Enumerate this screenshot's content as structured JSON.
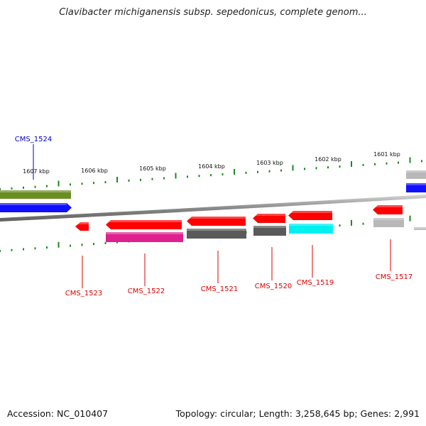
{
  "title": "Clavibacter michiganensis subsp. sepedonicus, complete genom...",
  "footer": {
    "accession": "Accession: NC_010407",
    "topology": "Topology: circular; Length: 3,258,645 bp; Genes: 2,991"
  },
  "colors": {
    "backbone": "#8a8a8a",
    "tick": "#1a8a1a",
    "tick_label": "#111111",
    "label_red": "#dd0000",
    "label_blue": "#0000cc",
    "olive": "#6b8e23",
    "blue": "#1010ff",
    "red": "#ff0000",
    "magenta": "#e0208f",
    "darkgray": "#5a5a5a",
    "cyan": "#00f0f0",
    "lightgray": "#b8b8b8"
  },
  "scale_labels": [
    "1607 kbp",
    "1606 kbp",
    "1605 kbp",
    "1604 kbp",
    "1603 kbp",
    "1602 kbp",
    "1601 kbp"
  ],
  "gene_labels": [
    {
      "id": "CMS_1524",
      "color": "blue"
    },
    {
      "id": "CMS_1523",
      "color": "red"
    },
    {
      "id": "CMS_1522",
      "color": "red"
    },
    {
      "id": "CMS_1521",
      "color": "red"
    },
    {
      "id": "CMS_1520",
      "color": "red"
    },
    {
      "id": "CMS_1519",
      "color": "red"
    },
    {
      "id": "CMS_1517",
      "color": "red"
    }
  ]
}
